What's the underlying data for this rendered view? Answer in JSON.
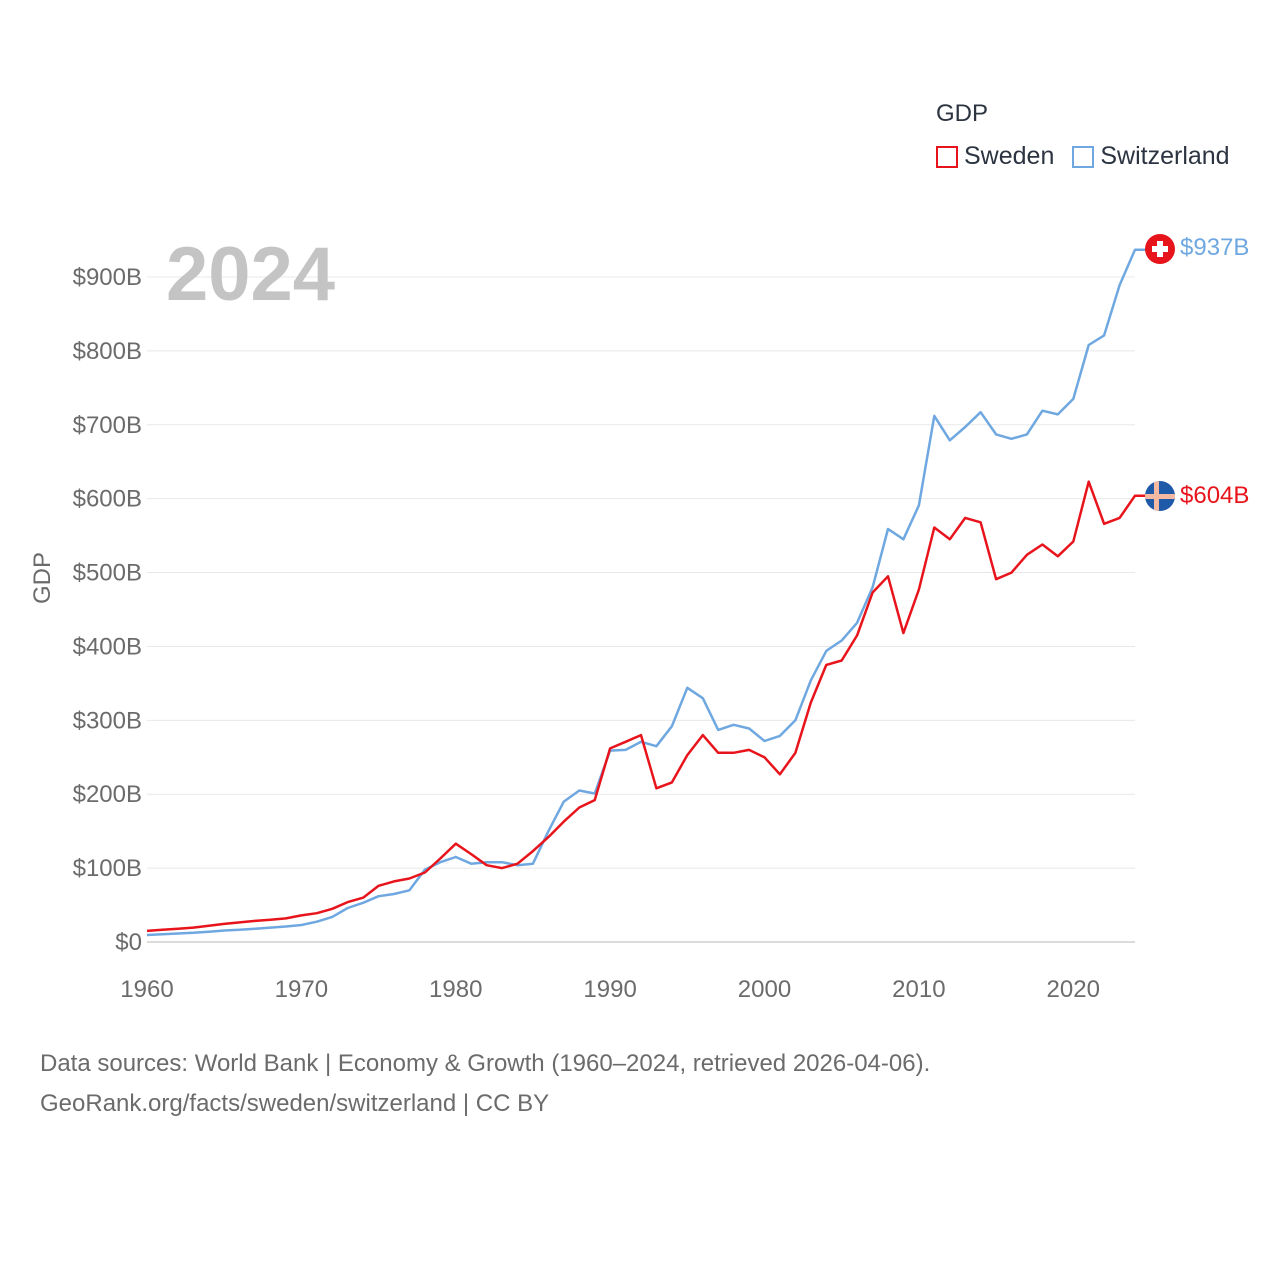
{
  "legend": {
    "title": "GDP",
    "items": [
      {
        "label": "Sweden",
        "color": "#e8141c"
      },
      {
        "label": "Switzerland",
        "color": "#6fa8e0"
      }
    ]
  },
  "year_label": "2024",
  "footer": {
    "line1": "Data sources: World Bank | Economy & Growth (1960–2024, retrieved 2026-04-06).",
    "line2": "GeoRank.org/facts/sweden/switzerland | CC BY"
  },
  "chart_data": {
    "type": "line",
    "title": "",
    "xlabel": "",
    "ylabel": "GDP",
    "xlim": [
      1960,
      2024
    ],
    "ylim": [
      0,
      900
    ],
    "x_ticks": [
      1960,
      1970,
      1980,
      1990,
      2000,
      2010,
      2020
    ],
    "x_tick_labels": [
      "1960",
      "1970",
      "1980",
      "1990",
      "2000",
      "2010",
      "2020"
    ],
    "y_ticks": [
      0,
      100,
      200,
      300,
      400,
      500,
      600,
      700,
      800,
      900
    ],
    "y_tick_labels": [
      "$0",
      "$100B",
      "$200B",
      "$300B",
      "$400B",
      "$500B",
      "$600B",
      "$700B",
      "$800B",
      "$900B"
    ],
    "grid": true,
    "legend_position": "top-right",
    "x": [
      1960,
      1961,
      1962,
      1963,
      1964,
      1965,
      1966,
      1967,
      1968,
      1969,
      1970,
      1971,
      1972,
      1973,
      1974,
      1975,
      1976,
      1977,
      1978,
      1979,
      1980,
      1981,
      1982,
      1983,
      1984,
      1985,
      1986,
      1987,
      1988,
      1989,
      1990,
      1991,
      1992,
      1993,
      1994,
      1995,
      1996,
      1997,
      1998,
      1999,
      2000,
      2001,
      2002,
      2003,
      2004,
      2005,
      2006,
      2007,
      2008,
      2009,
      2010,
      2011,
      2012,
      2013,
      2014,
      2015,
      2016,
      2017,
      2018,
      2019,
      2020,
      2021,
      2022,
      2023,
      2024
    ],
    "series": [
      {
        "name": "Sweden",
        "color": "#e8141c",
        "end_label": "$604B",
        "values": [
          15,
          16.5,
          18,
          19.5,
          22,
          24.5,
          26.5,
          28.5,
          30,
          32,
          36,
          39,
          45,
          54,
          60,
          76,
          82,
          86,
          94,
          113,
          133,
          119,
          104,
          100,
          106,
          123,
          142,
          163,
          182,
          192,
          262,
          271,
          280,
          208,
          216,
          253,
          280,
          256,
          256,
          260,
          250,
          227,
          256,
          324,
          375,
          381,
          415,
          473,
          495,
          418,
          477,
          561,
          545,
          574,
          568,
          491,
          500,
          524,
          538,
          522,
          542,
          623,
          566,
          574,
          604
        ]
      },
      {
        "name": "Switzerland",
        "color": "#6fa8e0",
        "end_label": "$937B",
        "values": [
          9.5,
          10.5,
          11.5,
          12.5,
          14,
          15.5,
          16.5,
          18,
          19.5,
          21,
          23,
          27.5,
          34,
          46,
          53,
          62,
          65,
          70,
          98,
          108,
          115,
          106,
          108,
          108,
          104,
          106,
          150,
          190,
          205,
          201,
          259,
          260,
          271,
          265,
          292,
          344,
          330,
          287,
          294,
          289,
          272,
          279,
          300,
          354,
          394,
          408,
          432,
          480,
          559,
          545,
          591,
          712,
          679,
          697,
          717,
          687,
          681,
          687,
          719,
          714,
          735,
          808,
          821,
          889,
          937
        ]
      }
    ]
  }
}
